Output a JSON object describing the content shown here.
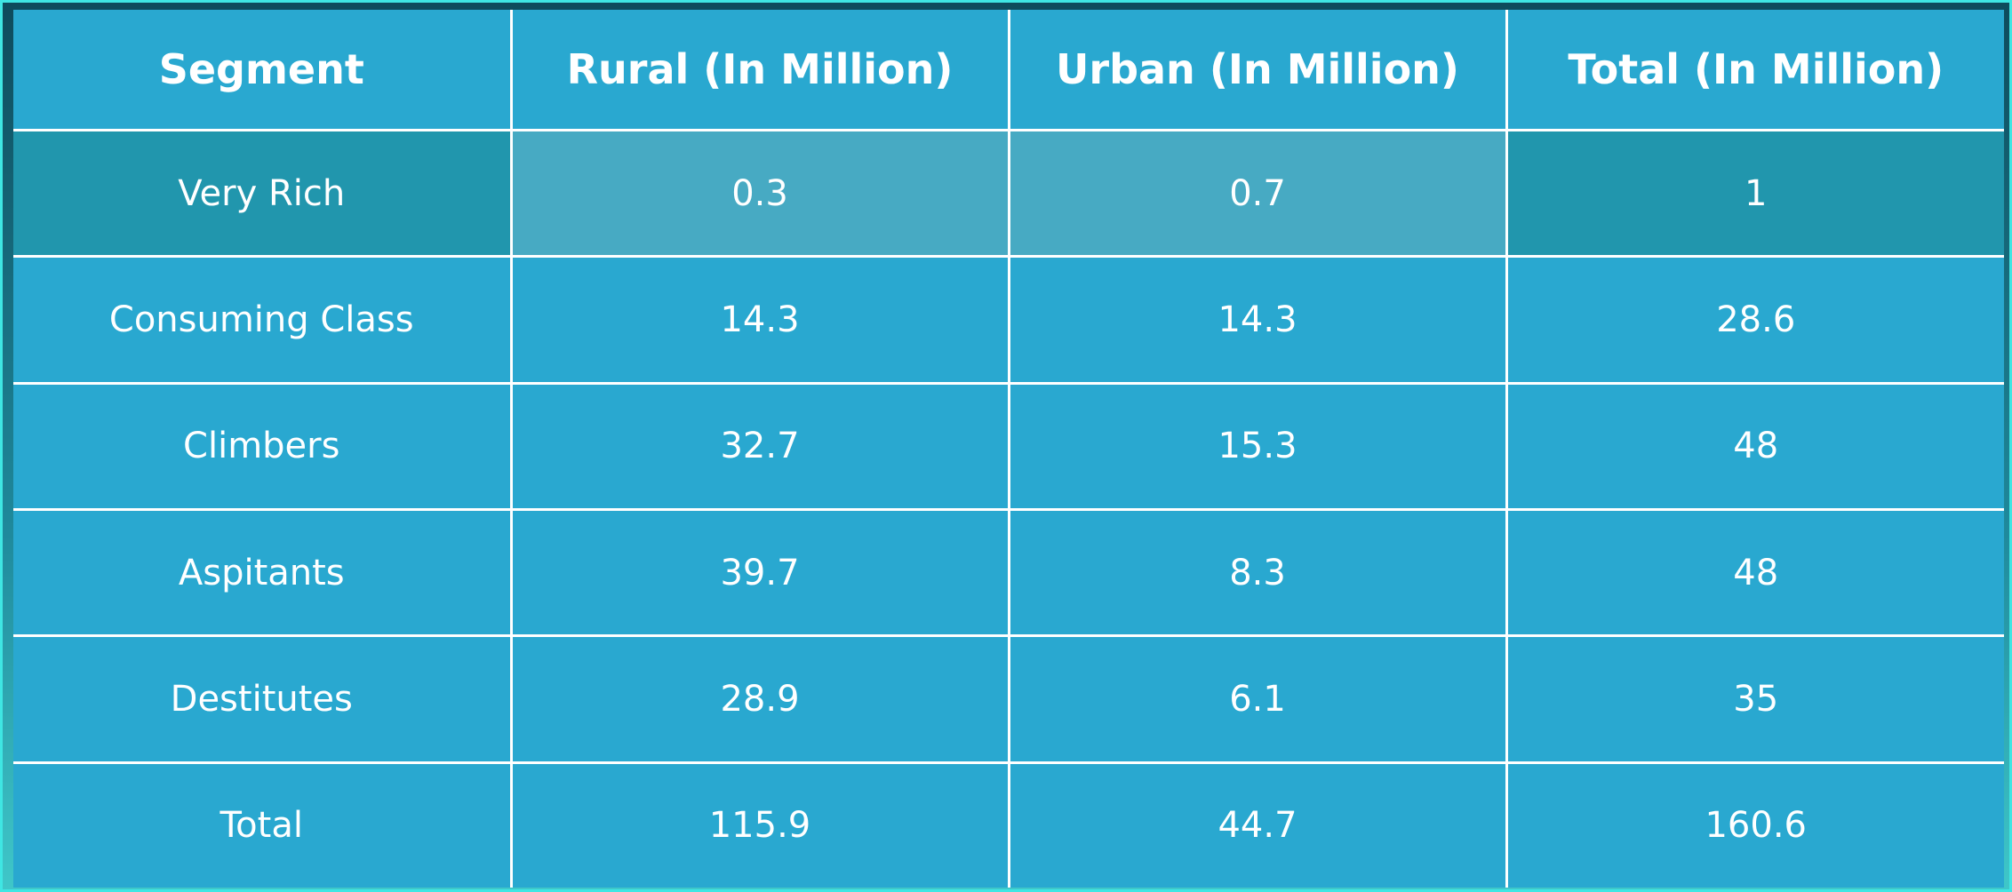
{
  "chart_data": {
    "type": "table",
    "columns": [
      "Segment",
      "Rural (In Million)",
      "Urban (In Million)",
      "Total (In Million)"
    ],
    "rows": [
      [
        "Very Rich",
        "0.3",
        "0.7",
        "1"
      ],
      [
        "Consuming Class",
        "14.3",
        "14.3",
        "28.6"
      ],
      [
        "Climbers",
        "32.7",
        "15.3",
        "48"
      ],
      [
        "Aspitants",
        "39.7",
        "8.3",
        "48"
      ],
      [
        "Destitutes",
        "28.9",
        "6.1",
        "35"
      ],
      [
        "Total",
        "115.9",
        "44.7",
        "160.6"
      ]
    ],
    "highlighted_row": 0
  },
  "colors": {
    "cell": "#29a8d0",
    "highlight_dark": "#2196ad",
    "highlight_light": "#47aac3",
    "border": "#ffffff",
    "frame": "#3fe6e3"
  }
}
